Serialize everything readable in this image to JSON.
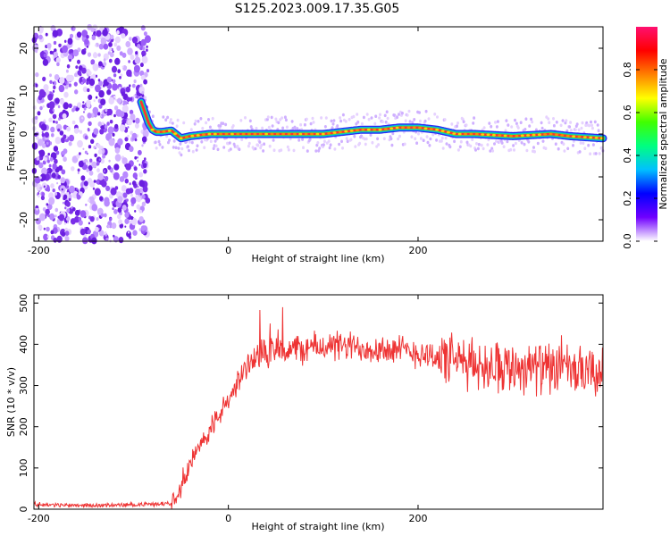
{
  "title": "S125.2023.009.17.35.G05",
  "chart_data": [
    {
      "type": "heatmap",
      "xlabel": "Height of straight line (km)",
      "ylabel": "Frequency (Hz)",
      "xlim": [
        -205,
        395
      ],
      "ylim": [
        -25,
        25
      ],
      "xticks": [
        -200,
        0,
        200
      ],
      "yticks": [
        -20,
        -10,
        0,
        10,
        20
      ],
      "grid": false,
      "noise_region_x": [
        -205,
        -92
      ],
      "ridge": {
        "x": [
          -92,
          -88,
          -84,
          -80,
          -76,
          -70,
          -60,
          -50,
          -40,
          -20,
          0,
          40,
          80,
          100,
          140,
          160,
          180,
          200,
          220,
          240,
          260,
          300,
          340,
          360,
          395
        ],
        "y": [
          7.5,
          5,
          2.5,
          1,
          0.5,
          0.5,
          0.8,
          -1,
          -0.5,
          0,
          0,
          0,
          0,
          0,
          1,
          1,
          1.5,
          1.5,
          1,
          0,
          0,
          -0.5,
          0,
          -0.5,
          -1
        ]
      },
      "colorbar": {
        "label": "Normalized spectral amplitude",
        "range": [
          0.0,
          1.0
        ],
        "ticks": [
          0.0,
          0.2,
          0.4,
          0.6,
          0.8
        ],
        "tick_labels": [
          "0.0",
          "0.2",
          "0.4",
          "0.6",
          "0.8"
        ],
        "colors": [
          "#ffffff",
          "#7000ff",
          "#0000ff",
          "#00c0ff",
          "#00ff80",
          "#40ff00",
          "#ffff00",
          "#ff8000",
          "#ff0000",
          "#ff1070"
        ]
      }
    },
    {
      "type": "line",
      "xlabel": "Height of straight line (km)",
      "ylabel": "SNR (10 * v/v)",
      "xlim": [
        -205,
        395
      ],
      "ylim": [
        0,
        520
      ],
      "xticks": [
        -200,
        0,
        200
      ],
      "yticks": [
        0,
        100,
        200,
        300,
        400,
        500
      ],
      "grid": false,
      "color": "#ee3333",
      "series": [
        {
          "x": [
            -205,
            -180,
            -160,
            -140,
            -120,
            -100,
            -80,
            -60,
            -55,
            -50,
            -45,
            -40,
            -30,
            -20,
            -10,
            0,
            10,
            20,
            30,
            40,
            60,
            80,
            100,
            120,
            140,
            160,
            180,
            200,
            220,
            240,
            260,
            280,
            300,
            320,
            340,
            360,
            380,
            395
          ],
          "values": [
            12,
            10,
            10,
            9,
            10,
            11,
            12,
            15,
            40,
            60,
            90,
            110,
            150,
            190,
            230,
            260,
            310,
            350,
            375,
            380,
            385,
            390,
            395,
            395,
            392,
            390,
            385,
            380,
            370,
            360,
            350,
            350,
            345,
            345,
            340,
            335,
            330,
            325
          ]
        }
      ]
    }
  ]
}
